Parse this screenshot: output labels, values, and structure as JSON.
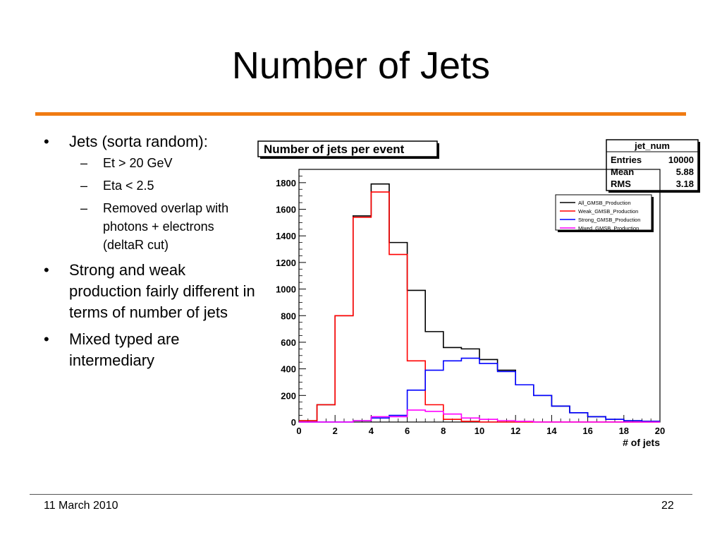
{
  "slide": {
    "title": "Number of Jets",
    "accent_color": "#f07b12",
    "footer_date": "11 March 2010",
    "page_number": "22"
  },
  "bullets": [
    {
      "text": "Jets (sorta random):",
      "subs": [
        "Et > 20 GeV",
        "Eta < 2.5",
        "Removed overlap with photons + electrons (deltaR cut)"
      ]
    },
    {
      "text": "Strong and weak production fairly different in terms of number of jets",
      "subs": []
    },
    {
      "text": "Mixed typed are intermediary",
      "subs": []
    }
  ],
  "bullet_glyph": "•",
  "sub_glyph": "–",
  "chart_data": {
    "type": "histogram",
    "title": "Number of jets per event",
    "xlabel": "# of jets",
    "ylabel": "",
    "xlim": [
      0,
      20
    ],
    "ylim": [
      0,
      1900
    ],
    "xticks": [
      0,
      2,
      4,
      6,
      8,
      10,
      12,
      14,
      16,
      18,
      20
    ],
    "yticks": [
      0,
      200,
      400,
      600,
      800,
      1000,
      1200,
      1400,
      1600,
      1800
    ],
    "bin_edges": [
      0,
      1,
      2,
      3,
      4,
      5,
      6,
      7,
      8,
      9,
      10,
      11,
      12,
      13,
      14,
      15,
      16,
      17,
      18,
      19,
      20
    ],
    "series": [
      {
        "name": "All_GMSB_Production",
        "color": "#000000",
        "values": [
          10,
          130,
          800,
          1550,
          1790,
          1350,
          990,
          680,
          560,
          550,
          470,
          390,
          280,
          200,
          120,
          70,
          40,
          20,
          10,
          5
        ]
      },
      {
        "name": "Weak_GMSB_Production",
        "color": "#ff0000",
        "values": [
          10,
          130,
          800,
          1540,
          1730,
          1260,
          460,
          130,
          20,
          5,
          0,
          0,
          0,
          0,
          0,
          0,
          0,
          0,
          0,
          0
        ]
      },
      {
        "name": "Strong_GMSB_Production",
        "color": "#0000ff",
        "values": [
          0,
          0,
          0,
          10,
          30,
          50,
          240,
          390,
          460,
          480,
          440,
          380,
          280,
          200,
          120,
          70,
          40,
          20,
          10,
          5
        ]
      },
      {
        "name": "Mixed_GMSB_Production",
        "color": "#ff00ff",
        "values": [
          0,
          0,
          0,
          10,
          40,
          40,
          90,
          80,
          60,
          30,
          20,
          10,
          5,
          0,
          0,
          0,
          0,
          0,
          0,
          0
        ]
      }
    ],
    "stats_box": {
      "name": "jet_num",
      "rows": [
        {
          "label": "Entries",
          "value": "10000"
        },
        {
          "label": "Mean",
          "value": "5.88"
        },
        {
          "label": "RMS",
          "value": "3.18"
        }
      ]
    },
    "legend_position": "top-right"
  }
}
